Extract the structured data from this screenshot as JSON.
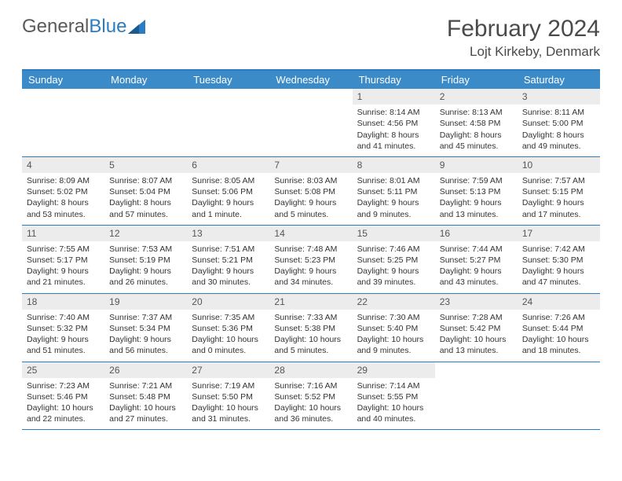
{
  "logo": {
    "text_gray": "General",
    "text_blue": "Blue"
  },
  "title": "February 2024",
  "location": "Lojt Kirkeby, Denmark",
  "colors": {
    "header_bg": "#3b8bc9",
    "header_text": "#ffffff",
    "border": "#2b7cc0",
    "daynum_bg": "#ececec",
    "text": "#333333"
  },
  "day_names": [
    "Sunday",
    "Monday",
    "Tuesday",
    "Wednesday",
    "Thursday",
    "Friday",
    "Saturday"
  ],
  "weeks": [
    [
      null,
      null,
      null,
      null,
      {
        "n": "1",
        "sr": "8:14 AM",
        "ss": "4:56 PM",
        "dl": "8 hours and 41 minutes."
      },
      {
        "n": "2",
        "sr": "8:13 AM",
        "ss": "4:58 PM",
        "dl": "8 hours and 45 minutes."
      },
      {
        "n": "3",
        "sr": "8:11 AM",
        "ss": "5:00 PM",
        "dl": "8 hours and 49 minutes."
      }
    ],
    [
      {
        "n": "4",
        "sr": "8:09 AM",
        "ss": "5:02 PM",
        "dl": "8 hours and 53 minutes."
      },
      {
        "n": "5",
        "sr": "8:07 AM",
        "ss": "5:04 PM",
        "dl": "8 hours and 57 minutes."
      },
      {
        "n": "6",
        "sr": "8:05 AM",
        "ss": "5:06 PM",
        "dl": "9 hours and 1 minute."
      },
      {
        "n": "7",
        "sr": "8:03 AM",
        "ss": "5:08 PM",
        "dl": "9 hours and 5 minutes."
      },
      {
        "n": "8",
        "sr": "8:01 AM",
        "ss": "5:11 PM",
        "dl": "9 hours and 9 minutes."
      },
      {
        "n": "9",
        "sr": "7:59 AM",
        "ss": "5:13 PM",
        "dl": "9 hours and 13 minutes."
      },
      {
        "n": "10",
        "sr": "7:57 AM",
        "ss": "5:15 PM",
        "dl": "9 hours and 17 minutes."
      }
    ],
    [
      {
        "n": "11",
        "sr": "7:55 AM",
        "ss": "5:17 PM",
        "dl": "9 hours and 21 minutes."
      },
      {
        "n": "12",
        "sr": "7:53 AM",
        "ss": "5:19 PM",
        "dl": "9 hours and 26 minutes."
      },
      {
        "n": "13",
        "sr": "7:51 AM",
        "ss": "5:21 PM",
        "dl": "9 hours and 30 minutes."
      },
      {
        "n": "14",
        "sr": "7:48 AM",
        "ss": "5:23 PM",
        "dl": "9 hours and 34 minutes."
      },
      {
        "n": "15",
        "sr": "7:46 AM",
        "ss": "5:25 PM",
        "dl": "9 hours and 39 minutes."
      },
      {
        "n": "16",
        "sr": "7:44 AM",
        "ss": "5:27 PM",
        "dl": "9 hours and 43 minutes."
      },
      {
        "n": "17",
        "sr": "7:42 AM",
        "ss": "5:30 PM",
        "dl": "9 hours and 47 minutes."
      }
    ],
    [
      {
        "n": "18",
        "sr": "7:40 AM",
        "ss": "5:32 PM",
        "dl": "9 hours and 51 minutes."
      },
      {
        "n": "19",
        "sr": "7:37 AM",
        "ss": "5:34 PM",
        "dl": "9 hours and 56 minutes."
      },
      {
        "n": "20",
        "sr": "7:35 AM",
        "ss": "5:36 PM",
        "dl": "10 hours and 0 minutes."
      },
      {
        "n": "21",
        "sr": "7:33 AM",
        "ss": "5:38 PM",
        "dl": "10 hours and 5 minutes."
      },
      {
        "n": "22",
        "sr": "7:30 AM",
        "ss": "5:40 PM",
        "dl": "10 hours and 9 minutes."
      },
      {
        "n": "23",
        "sr": "7:28 AM",
        "ss": "5:42 PM",
        "dl": "10 hours and 13 minutes."
      },
      {
        "n": "24",
        "sr": "7:26 AM",
        "ss": "5:44 PM",
        "dl": "10 hours and 18 minutes."
      }
    ],
    [
      {
        "n": "25",
        "sr": "7:23 AM",
        "ss": "5:46 PM",
        "dl": "10 hours and 22 minutes."
      },
      {
        "n": "26",
        "sr": "7:21 AM",
        "ss": "5:48 PM",
        "dl": "10 hours and 27 minutes."
      },
      {
        "n": "27",
        "sr": "7:19 AM",
        "ss": "5:50 PM",
        "dl": "10 hours and 31 minutes."
      },
      {
        "n": "28",
        "sr": "7:16 AM",
        "ss": "5:52 PM",
        "dl": "10 hours and 36 minutes."
      },
      {
        "n": "29",
        "sr": "7:14 AM",
        "ss": "5:55 PM",
        "dl": "10 hours and 40 minutes."
      },
      null,
      null
    ]
  ],
  "labels": {
    "sunrise": "Sunrise:",
    "sunset": "Sunset:",
    "daylight": "Daylight:"
  }
}
